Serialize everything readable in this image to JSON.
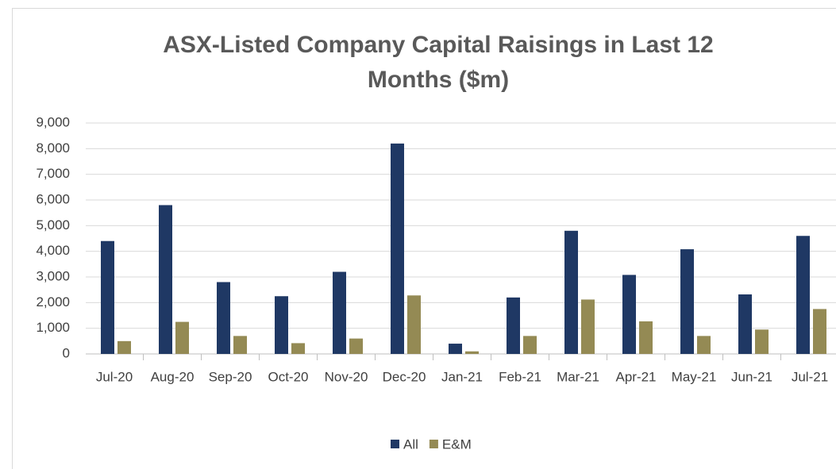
{
  "chart_data": {
    "type": "bar",
    "title": "ASX-Listed Company Capital Raisings in Last 12 Months ($m)",
    "categories": [
      "Jul-20",
      "Aug-20",
      "Sep-20",
      "Oct-20",
      "Nov-20",
      "Dec-20",
      "Jan-21",
      "Feb-21",
      "Mar-21",
      "Apr-21",
      "May-21",
      "Jun-21",
      "Jul-21"
    ],
    "series": [
      {
        "name": "All",
        "color": "#1f3864",
        "values": [
          4400,
          5800,
          2800,
          2250,
          3200,
          8200,
          400,
          2200,
          4800,
          3080,
          4080,
          2320,
          4600
        ]
      },
      {
        "name": "E&M",
        "color": "#948a54",
        "values": [
          500,
          1250,
          700,
          420,
          600,
          2280,
          100,
          700,
          2120,
          1270,
          700,
          950,
          1750
        ]
      }
    ],
    "ylim": [
      0,
      9000
    ],
    "yticks": [
      0,
      {
        "value": 1000,
        "label": "1,000"
      },
      {
        "value": 2000,
        "label": "2,000"
      },
      {
        "value": 3000,
        "label": "3,000"
      },
      {
        "value": 4000,
        "label": "4,000"
      },
      {
        "value": 5000,
        "label": "5,000"
      },
      {
        "value": 6000,
        "label": "6,000"
      },
      {
        "value": 7000,
        "label": "7,000"
      },
      {
        "value": 8000,
        "label": "8,000"
      },
      {
        "value": 9000,
        "label": "9,000"
      }
    ],
    "grid": true,
    "legend": "bottom"
  }
}
